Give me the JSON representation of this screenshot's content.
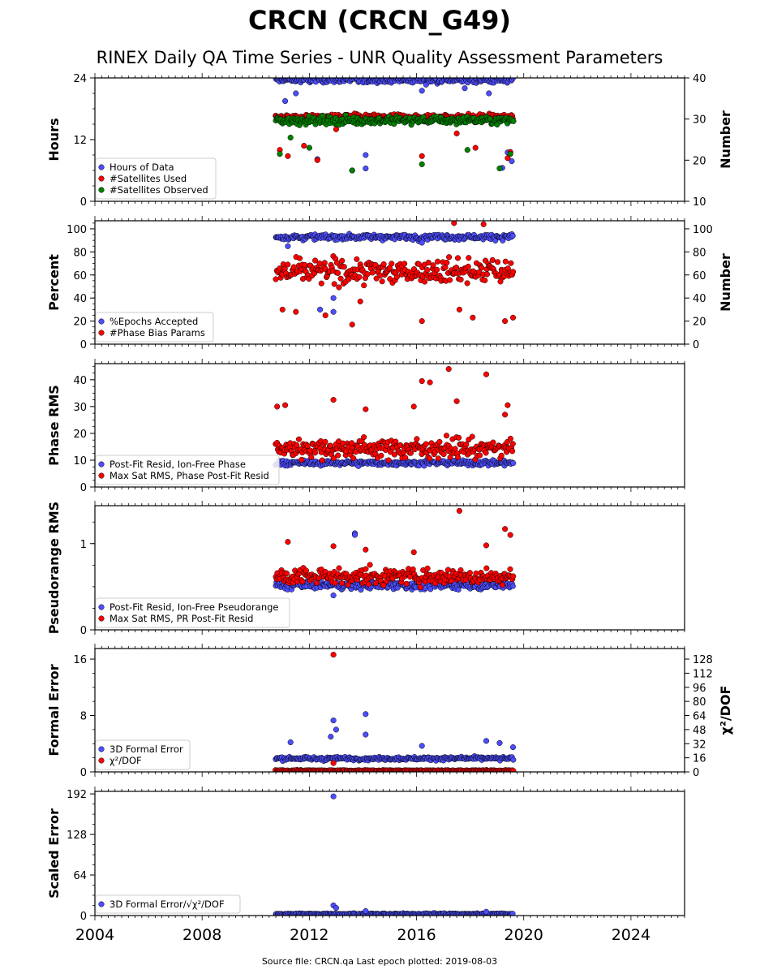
{
  "title": "CRCN (CRCN_G49)",
  "subtitle": "RINEX Daily QA Time Series - UNR Quality Assessment Parameters",
  "footer": "Source file: CRCN.qa Last epoch plotted: 2019-08-03",
  "colors": {
    "blue": "#4d4dff",
    "red": "#ff0000",
    "green": "#008000"
  },
  "chart_data": [
    {
      "type": "scatter",
      "ylabel": "Hours",
      "ylabel_right": "Number",
      "xlim": [
        2004,
        2026
      ],
      "ylim": [
        0,
        24
      ],
      "ylim_right": [
        10,
        40
      ],
      "yticks": [
        0,
        12,
        24
      ],
      "yticks_right": [
        10,
        20,
        30,
        40
      ],
      "xticks": [
        2004,
        2008,
        2012,
        2016,
        2020,
        2024
      ],
      "legend_position": "lower-left",
      "series": [
        {
          "name": "Hours of Data",
          "color": "blue",
          "axis": "left",
          "range": [
            2010.75,
            2019.6
          ],
          "typical": 23.6,
          "spread": 0.5,
          "outliers": [
            [
              2011.1,
              19.5
            ],
            [
              2011.5,
              21
            ],
            [
              2012.3,
              8.2
            ],
            [
              2013.6,
              6
            ],
            [
              2014.1,
              9
            ],
            [
              2014.1,
              6.4
            ],
            [
              2016.2,
              21.5
            ],
            [
              2017.8,
              22
            ],
            [
              2018.7,
              21
            ],
            [
              2019.2,
              6.5
            ],
            [
              2019.4,
              9.5
            ],
            [
              2019.55,
              7.8
            ]
          ]
        },
        {
          "name": "#Satellites Used",
          "color": "red",
          "axis": "right",
          "range": [
            2010.75,
            2019.6
          ],
          "typical": 30.5,
          "spread": 0.6,
          "outliers": [
            [
              2010.9,
              22.5
            ],
            [
              2011.2,
              21
            ],
            [
              2011.8,
              23.5
            ],
            [
              2012.3,
              20
            ],
            [
              2013.0,
              27.5
            ],
            [
              2016.2,
              21
            ],
            [
              2017.5,
              26.5
            ],
            [
              2018.2,
              23
            ],
            [
              2019.4,
              20.5
            ],
            [
              2019.5,
              22
            ]
          ]
        },
        {
          "name": "#Satellites Observed",
          "color": "green",
          "axis": "right",
          "range": [
            2010.75,
            2019.6
          ],
          "typical": 29.7,
          "spread": 0.8,
          "outliers": [
            [
              2010.9,
              21.5
            ],
            [
              2011.3,
              25.5
            ],
            [
              2012.0,
              23
            ],
            [
              2013.6,
              17.5
            ],
            [
              2016.2,
              19
            ],
            [
              2017.9,
              22.5
            ],
            [
              2019.1,
              18
            ],
            [
              2019.5,
              21.5
            ]
          ]
        }
      ]
    },
    {
      "type": "scatter",
      "ylabel": "Percent",
      "ylabel_right": "Number",
      "xlim": [
        2004,
        2026
      ],
      "ylim": [
        0,
        107
      ],
      "ylim_right": [
        0,
        107
      ],
      "yticks": [
        0,
        20,
        40,
        60,
        80,
        100
      ],
      "yticks_right": [
        0,
        20,
        40,
        60,
        80,
        100
      ],
      "legend_position": "lower-left",
      "series": [
        {
          "name": "%Epochs Accepted",
          "color": "blue",
          "axis": "left",
          "range": [
            2010.75,
            2019.6
          ],
          "typical": 93,
          "spread": 2,
          "outliers": [
            [
              2011.2,
              85
            ],
            [
              2012.9,
              40
            ],
            [
              2012.9,
              28
            ],
            [
              2012.4,
              30
            ],
            [
              2016.2,
              88
            ]
          ]
        },
        {
          "name": "#Phase Bias Params",
          "color": "red",
          "axis": "right",
          "range": [
            2010.75,
            2019.6
          ],
          "typical": 63,
          "spread": 9,
          "outliers": [
            [
              2011.0,
              30
            ],
            [
              2011.5,
              28
            ],
            [
              2012.6,
              25
            ],
            [
              2013.6,
              17
            ],
            [
              2013.9,
              37
            ],
            [
              2016.2,
              20
            ],
            [
              2017.4,
              105
            ],
            [
              2017.6,
              30
            ],
            [
              2018.1,
              23
            ],
            [
              2018.5,
              104
            ],
            [
              2019.3,
              20
            ],
            [
              2019.6,
              23
            ]
          ]
        }
      ]
    },
    {
      "type": "scatter",
      "ylabel": "Phase RMS",
      "xlim": [
        2004,
        2026
      ],
      "ylim": [
        0,
        46
      ],
      "yticks": [
        0,
        10,
        20,
        30,
        40
      ],
      "legend_position": "lower-left",
      "series": [
        {
          "name": "Post-Fit Resid, Ion-Free Phase",
          "color": "blue",
          "range": [
            2010.75,
            2019.6
          ],
          "typical": 9,
          "spread": 0.8,
          "outliers": []
        },
        {
          "name": "Max Sat RMS, Phase Post-Fit Resid",
          "color": "red",
          "range": [
            2010.75,
            2019.6
          ],
          "typical": 14.5,
          "spread": 3,
          "outliers": [
            [
              2010.8,
              30
            ],
            [
              2011.1,
              30.5
            ],
            [
              2012.9,
              32.5
            ],
            [
              2014.1,
              29
            ],
            [
              2015.9,
              30
            ],
            [
              2016.2,
              39.5
            ],
            [
              2016.5,
              39
            ],
            [
              2017.2,
              44
            ],
            [
              2017.5,
              32
            ],
            [
              2018.6,
              42
            ],
            [
              2019.4,
              30.5
            ],
            [
              2019.3,
              27
            ]
          ]
        }
      ]
    },
    {
      "type": "scatter",
      "ylabel": "Pseudorange RMS",
      "xlim": [
        2004,
        2026
      ],
      "ylim": [
        0,
        1.44
      ],
      "yticks": [
        0,
        1
      ],
      "legend_position": "lower-left",
      "series": [
        {
          "name": "Post-Fit Resid, Ion-Free Pseudorange",
          "color": "blue",
          "range": [
            2010.75,
            2019.6
          ],
          "typical": 0.52,
          "spread": 0.04,
          "outliers": [
            [
              2012.9,
              0.4
            ],
            [
              2013.7,
              1.12
            ],
            [
              2013.7,
              1.1
            ]
          ]
        },
        {
          "name": "Max Sat RMS, PR Post-Fit Resid",
          "color": "red",
          "range": [
            2010.75,
            2019.6
          ],
          "typical": 0.62,
          "spread": 0.08,
          "outliers": [
            [
              2011.2,
              1.02
            ],
            [
              2012.9,
              0.97
            ],
            [
              2014.1,
              0.93
            ],
            [
              2015.9,
              0.9
            ],
            [
              2017.6,
              1.38
            ],
            [
              2018.6,
              0.98
            ],
            [
              2019.3,
              1.17
            ],
            [
              2019.5,
              1.1
            ]
          ]
        }
      ]
    },
    {
      "type": "scatter",
      "ylabel": "Formal Error",
      "ylabel_right": "χ²/DOF",
      "xlim": [
        2004,
        2026
      ],
      "ylim": [
        0,
        17.5
      ],
      "ylim_right": [
        0,
        140
      ],
      "yticks": [
        0,
        8,
        16
      ],
      "yticks_right": [
        0,
        16,
        32,
        48,
        64,
        80,
        96,
        112,
        128
      ],
      "legend_position": "lower-left",
      "series": [
        {
          "name": "3D Formal Error",
          "color": "blue",
          "axis": "left",
          "range": [
            2010.75,
            2019.6
          ],
          "typical": 1.9,
          "spread": 0.2,
          "outliers": [
            [
              2011.3,
              4.2
            ],
            [
              2012.8,
              5
            ],
            [
              2012.9,
              7.3
            ],
            [
              2013.0,
              6
            ],
            [
              2014.1,
              8.2
            ],
            [
              2014.1,
              5.3
            ],
            [
              2016.2,
              3.7
            ],
            [
              2018.6,
              4.4
            ],
            [
              2019.1,
              4.1
            ],
            [
              2019.6,
              3.5
            ]
          ]
        },
        {
          "name": "χ²/DOF",
          "color": "red",
          "axis": "right",
          "range": [
            2010.75,
            2019.6
          ],
          "typical": 1.5,
          "spread": 0.5,
          "outliers": [
            [
              2012.9,
              133
            ],
            [
              2012.9,
              10
            ]
          ]
        }
      ]
    },
    {
      "type": "scatter",
      "ylabel": "Scaled Error",
      "xlim": [
        2004,
        2026
      ],
      "ylim": [
        0,
        196
      ],
      "yticks": [
        0,
        64,
        128,
        192
      ],
      "legend_position": "lower-left",
      "series": [
        {
          "name": "3D Formal Error/√χ²/DOF",
          "color": "blue",
          "range": [
            2010.75,
            2019.6
          ],
          "typical": 2.5,
          "spread": 1,
          "outliers": [
            [
              2012.9,
              188
            ],
            [
              2012.9,
              16
            ],
            [
              2013.0,
              12
            ],
            [
              2014.1,
              7
            ],
            [
              2018.6,
              6
            ]
          ]
        }
      ]
    }
  ]
}
